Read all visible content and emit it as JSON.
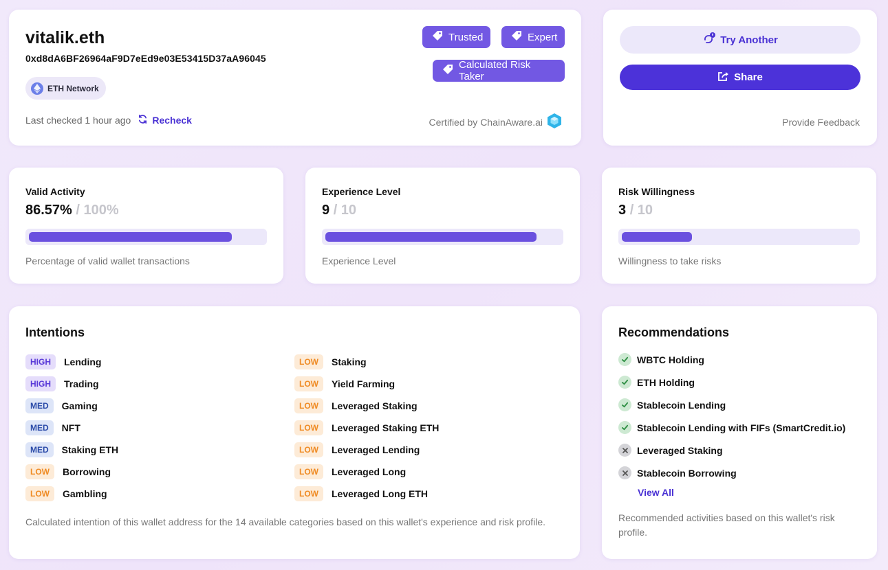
{
  "wallet": {
    "name": "vitalik.eth",
    "address": "0xd8dA6BF26964aF9D7eEd9e03E53415D37aA96045",
    "network": "ETH Network",
    "last_checked": "Last checked 1 hour ago",
    "recheck_label": "Recheck",
    "tags": [
      "Trusted",
      "Expert",
      "Calculated Risk Taker"
    ],
    "certified": "Certified by ChainAware.ai"
  },
  "actions": {
    "try_another_label": "Try Another",
    "share_label": "Share",
    "feedback_label": "Provide Feedback"
  },
  "metrics": [
    {
      "title": "Valid Activity",
      "value": "86.57%",
      "max": "/ 100%",
      "fraction": 0.8657,
      "description": "Percentage of valid wallet transactions"
    },
    {
      "title": "Experience Level",
      "value": "9",
      "max": "/ 10",
      "fraction": 0.9,
      "description": "Experience Level"
    },
    {
      "title": "Risk Willingness",
      "value": "3",
      "max": "/ 10",
      "fraction": 0.3,
      "description": "Willingness to take risks"
    }
  ],
  "intentions": {
    "title": "Intentions",
    "column_a": [
      {
        "level": "HIGH",
        "label": "Lending"
      },
      {
        "level": "HIGH",
        "label": "Trading"
      },
      {
        "level": "MED",
        "label": "Gaming"
      },
      {
        "level": "MED",
        "label": "NFT"
      },
      {
        "level": "MED",
        "label": "Staking ETH"
      },
      {
        "level": "LOW",
        "label": "Borrowing"
      },
      {
        "level": "LOW",
        "label": "Gambling"
      }
    ],
    "column_b": [
      {
        "level": "LOW",
        "label": "Staking"
      },
      {
        "level": "LOW",
        "label": "Yield Farming"
      },
      {
        "level": "LOW",
        "label": "Leveraged Staking"
      },
      {
        "level": "LOW",
        "label": "Leveraged Staking ETH"
      },
      {
        "level": "LOW",
        "label": "Leveraged Lending"
      },
      {
        "level": "LOW",
        "label": "Leveraged Long"
      },
      {
        "level": "LOW",
        "label": "Leveraged Long ETH"
      }
    ],
    "description": "Calculated intention of this wallet address for the 14 available categories based on this wallet's experience and risk profile."
  },
  "recommendations": {
    "title": "Recommendations",
    "items": [
      {
        "label": "WBTC Holding",
        "recommended": true
      },
      {
        "label": "ETH Holding",
        "recommended": true
      },
      {
        "label": "Stablecoin Lending",
        "recommended": true
      },
      {
        "label": "Stablecoin Lending with FIFs (SmartCredit.io)",
        "recommended": true
      },
      {
        "label": "Leveraged Staking",
        "recommended": false
      },
      {
        "label": "Stablecoin Borrowing",
        "recommended": false
      }
    ],
    "view_all_label": "View All",
    "description": "Recommended activities based on this wallet's risk profile."
  },
  "colors": {
    "accent": "#4c32d9",
    "tag": "#7258e3",
    "bar": "#6a50df",
    "high": "#5a3ad8",
    "med": "#2a4aa8",
    "low": "#ef8b24"
  }
}
